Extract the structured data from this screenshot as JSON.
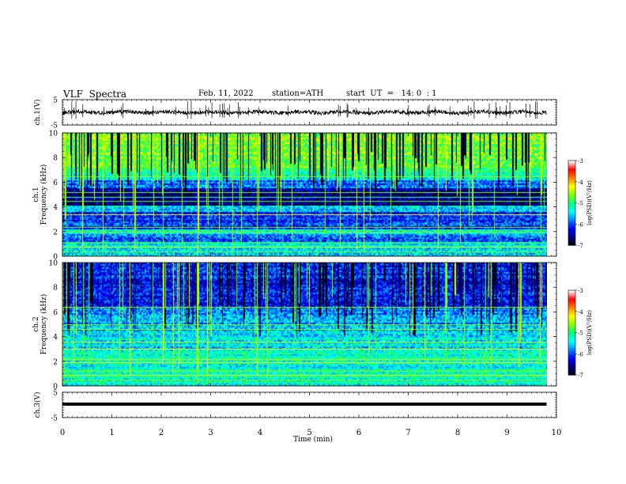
{
  "header": {
    "title": "VLF  Spectra",
    "date": "Feb. 11, 2022",
    "station": "station=ATH",
    "start": "start  UT  =   14: 0  : 1"
  },
  "chart_data": {
    "type": "heatmap",
    "xlabel": "Time  (min)",
    "xlim": [
      0,
      10
    ],
    "xticks": [
      "0",
      "1",
      "2",
      "3",
      "4",
      "5",
      "6",
      "7",
      "8",
      "9",
      "10"
    ],
    "panels": [
      {
        "id": "ch1-waveform",
        "kind": "line",
        "ylabel": "ch.1(V)",
        "ylim": [
          -5,
          5
        ],
        "yticks": [
          "5",
          "-5"
        ]
      },
      {
        "id": "ch1-spectrogram",
        "kind": "heatmap",
        "ylabel": "ch.1",
        "ylabel2": "Frequency  (kHz)",
        "ylim": [
          0,
          10
        ],
        "yticks": [
          "0",
          "2",
          "4",
          "6",
          "8",
          "10"
        ],
        "colorbar": {
          "label": "log(PSD)(V²/Hz)",
          "range": [
            -7,
            -3
          ],
          "ticks": [
            "-3",
            "-4",
            "-5",
            "-6",
            "-7"
          ]
        }
      },
      {
        "id": "ch2-spectrogram",
        "kind": "heatmap",
        "ylabel": "ch.2",
        "ylabel2": "Frequency  (kHz)",
        "ylim": [
          0,
          10
        ],
        "yticks": [
          "0",
          "2",
          "4",
          "6",
          "8",
          "10"
        ],
        "colorbar": {
          "label": "log(PSD)(V²/Hz)",
          "range": [
            -7,
            -3
          ],
          "ticks": [
            "-3",
            "-4",
            "-5",
            "-6",
            "-7"
          ]
        }
      },
      {
        "id": "ch3-waveform",
        "kind": "line",
        "ylabel": "ch.3(V)",
        "ylim": [
          -5,
          5
        ],
        "yticks": [
          "5",
          "-5"
        ]
      }
    ],
    "data_end_min": 9.8,
    "colormap": [
      "#000000",
      "#000080",
      "#0000ff",
      "#0080ff",
      "#00ffff",
      "#00ff80",
      "#80ff00",
      "#ffff00",
      "#ff8000",
      "#ff0000",
      "#ffffff"
    ]
  }
}
